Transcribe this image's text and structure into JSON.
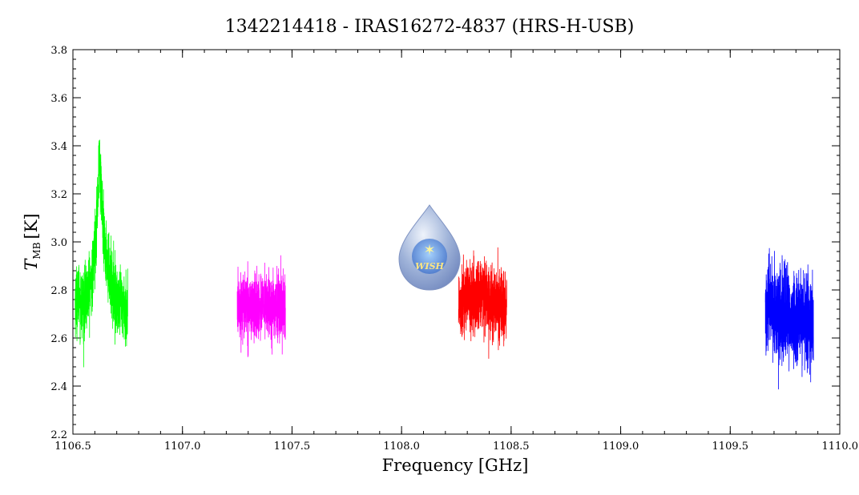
{
  "chart_data": {
    "type": "line",
    "title": "1342214418 - IRAS16272-4837 (HRS-H-USB)",
    "xlabel": "Frequency [GHz]",
    "ylabel_main": "T",
    "ylabel_sub": "MB",
    "ylabel_unit": "[K]",
    "xlim": [
      1106.5,
      1110.0
    ],
    "ylim": [
      2.2,
      3.8
    ],
    "xticks": [
      1106.5,
      1107.0,
      1107.5,
      1108.0,
      1108.5,
      1109.0,
      1109.5,
      1110.0
    ],
    "xtick_labels": [
      "1106.5",
      "1107.0",
      "1107.5",
      "1108.0",
      "1108.5",
      "1109.0",
      "1109.5",
      "1110.0"
    ],
    "yticks": [
      2.2,
      2.4,
      2.6,
      2.8,
      3.0,
      3.2,
      3.4,
      3.6,
      3.8
    ],
    "ytick_labels": [
      "2.2",
      "2.4",
      "2.6",
      "2.8",
      "3.0",
      "3.2",
      "3.4",
      "3.6",
      "3.8"
    ],
    "grid": false,
    "legend": "none",
    "series": [
      {
        "color": "#00ff00",
        "x": [
          1106.51,
          1106.53,
          1106.55,
          1106.57,
          1106.59,
          1106.61,
          1106.62,
          1106.63,
          1106.64,
          1106.65,
          1106.67,
          1106.69,
          1106.71,
          1106.73,
          1106.75
        ],
        "y": [
          2.75,
          2.78,
          2.72,
          2.8,
          2.85,
          3.1,
          3.35,
          3.2,
          3.0,
          2.95,
          2.85,
          2.78,
          2.72,
          2.74,
          2.7
        ],
        "noise": 0.14
      },
      {
        "color": "#ff00ff",
        "x": [
          1107.25,
          1107.29,
          1107.33,
          1107.37,
          1107.41,
          1107.45,
          1107.47
        ],
        "y": [
          2.73,
          2.74,
          2.72,
          2.74,
          2.73,
          2.74,
          2.73
        ],
        "noise": 0.13
      },
      {
        "color": "#ff0000",
        "x": [
          1108.26,
          1108.3,
          1108.34,
          1108.38,
          1108.42,
          1108.46,
          1108.48
        ],
        "y": [
          2.75,
          2.76,
          2.77,
          2.78,
          2.74,
          2.73,
          2.72
        ],
        "noise": 0.15
      },
      {
        "color": "#0000ff",
        "x": [
          1109.66,
          1109.7,
          1109.74,
          1109.78,
          1109.82,
          1109.86,
          1109.88
        ],
        "y": [
          2.7,
          2.72,
          2.69,
          2.68,
          2.67,
          2.68,
          2.66
        ],
        "noise": 0.19
      }
    ],
    "logo": {
      "text": "WISH",
      "x": 1108.13,
      "y": 2.9
    }
  }
}
